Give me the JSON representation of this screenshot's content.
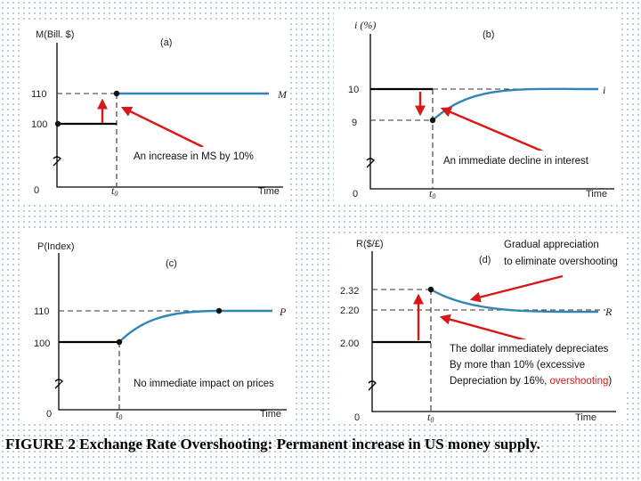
{
  "caption": "FIGURE 2 Exchange Rate Overshooting: Permanent increase in US money supply.",
  "chart_data": [
    {
      "type": "line",
      "panel": "(a)",
      "ylabel": "M(Bill. $)",
      "xlabel": "Time",
      "x_ticks": [
        "0",
        "t0"
      ],
      "y_ticks": [
        100,
        110
      ],
      "series": [
        {
          "name": "M",
          "points": [
            [
              "before t0",
              100
            ],
            [
              "t0",
              100
            ],
            [
              "t0",
              110
            ],
            [
              "after t0",
              110
            ]
          ]
        }
      ],
      "annotation": "An increase in MS by 10%"
    },
    {
      "type": "line",
      "panel": "(b)",
      "ylabel": "i (%)",
      "xlabel": "Time",
      "x_ticks": [
        "0",
        "t0"
      ],
      "y_ticks": [
        9,
        10
      ],
      "series": [
        {
          "name": "i",
          "points": [
            [
              "before t0",
              10
            ],
            [
              "t0",
              10
            ],
            [
              "t0",
              9
            ],
            [
              "long run",
              10
            ]
          ]
        }
      ],
      "annotation": "An immediate decline in interest"
    },
    {
      "type": "line",
      "panel": "(c)",
      "ylabel": "P(Index)",
      "xlabel": "Time",
      "x_ticks": [
        "0",
        "t0"
      ],
      "y_ticks": [
        100,
        110
      ],
      "series": [
        {
          "name": "P",
          "points": [
            [
              "before t0",
              100
            ],
            [
              "t0",
              100
            ],
            [
              "long run",
              110
            ]
          ]
        }
      ],
      "annotation": "No immediate impact on prices"
    },
    {
      "type": "line",
      "panel": "(d)",
      "ylabel": "R($/£)",
      "xlabel": "Time",
      "x_ticks": [
        "0",
        "t0"
      ],
      "y_ticks": [
        2.0,
        2.2,
        2.32
      ],
      "series": [
        {
          "name": "R",
          "points": [
            [
              "before t0",
              2.0
            ],
            [
              "t0",
              2.0
            ],
            [
              "t0",
              2.32
            ],
            [
              "long run",
              2.2
            ]
          ]
        }
      ],
      "annotation_top": [
        "Gradual appreciation",
        "to eliminate overshooting"
      ],
      "annotation_bottom": [
        "The dollar immediately depreciates",
        "By more than 10% (excessive",
        "Depreciation by 16%, ",
        "overshooting",
        ")"
      ]
    }
  ],
  "panels": {
    "a": {
      "ylabel": "M(Bill. $)",
      "tag": "(a)",
      "y_hi": "110",
      "y_lo": "100",
      "zero": "0",
      "t0": "t",
      "t0_sub": "0",
      "time": "Time",
      "series": "M",
      "note": "An increase in MS by 10%"
    },
    "b": {
      "ylabel": "i (%)",
      "tag": "(b)",
      "y_hi": "10",
      "y_lo": "9",
      "zero": "0",
      "t0": "t",
      "t0_sub": "0",
      "time": "Time",
      "series": "i",
      "note": "An immediate decline in interest"
    },
    "c": {
      "ylabel": "P(Index)",
      "tag": "(c)",
      "y_hi": "110",
      "y_lo": "100",
      "zero": "0",
      "t0": "t",
      "t0_sub": "0",
      "time": "Time",
      "series": "P",
      "note": "No immediate impact on prices"
    },
    "d": {
      "ylabel": "R($/£)",
      "tag": "(d)",
      "y_top": "2.32",
      "y_mid": "2.20",
      "y_lo": "2.00",
      "zero": "0",
      "t0": "t",
      "t0_sub": "0",
      "time": "Time",
      "series": "R",
      "note_top_1": "Gradual appreciation",
      "note_top_2": "to eliminate overshooting",
      "note_bot_1": "The dollar immediately depreciates",
      "note_bot_2": "By more than 10% (excessive",
      "note_bot_3a": "Depreciation by 16%, ",
      "note_bot_3b": "overshooting",
      "note_bot_3c": ")"
    }
  },
  "colors": {
    "new_path": "#2f86b5",
    "old_path": "#000000",
    "arrow": "#d81818",
    "highlight_text": "#d81818"
  }
}
